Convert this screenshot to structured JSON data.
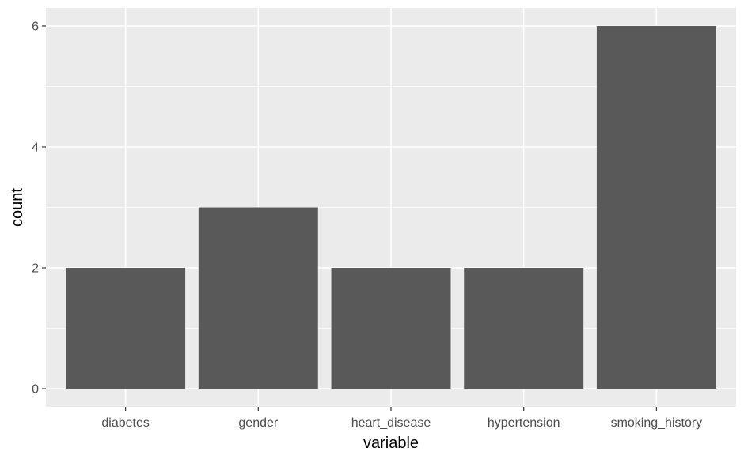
{
  "chart_data": {
    "type": "bar",
    "categories": [
      "diabetes",
      "gender",
      "heart_disease",
      "hypertension",
      "smoking_history"
    ],
    "values": [
      2,
      3,
      2,
      2,
      6
    ],
    "xlabel": "variable",
    "ylabel": "count",
    "ylim": [
      -0.3,
      6.3
    ],
    "yticks": [
      0,
      2,
      4,
      6
    ],
    "grid": true,
    "legend": "none",
    "colors": {
      "panel": "#ebebeb",
      "grid": "#ffffff",
      "bar": "#595959",
      "tick_text": "#4d4d4d",
      "tick_mark": "#333333",
      "title_text": "#000000"
    }
  }
}
